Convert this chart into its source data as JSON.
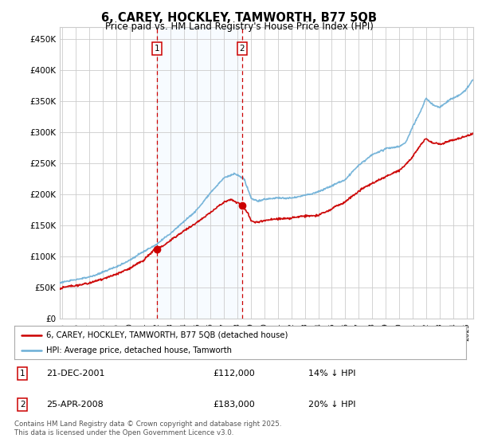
{
  "title": "6, CAREY, HOCKLEY, TAMWORTH, B77 5QB",
  "subtitle": "Price paid vs. HM Land Registry's House Price Index (HPI)",
  "ylabel_ticks": [
    "£0",
    "£50K",
    "£100K",
    "£150K",
    "£200K",
    "£250K",
    "£300K",
    "£350K",
    "£400K",
    "£450K"
  ],
  "ytick_values": [
    0,
    50000,
    100000,
    150000,
    200000,
    250000,
    300000,
    350000,
    400000,
    450000
  ],
  "ylim": [
    0,
    470000
  ],
  "xlim_start": 1994.8,
  "xlim_end": 2025.5,
  "xticks": [
    1995,
    1996,
    1997,
    1998,
    1999,
    2000,
    2001,
    2002,
    2003,
    2004,
    2005,
    2006,
    2007,
    2008,
    2009,
    2010,
    2011,
    2012,
    2013,
    2014,
    2015,
    2016,
    2017,
    2018,
    2019,
    2020,
    2021,
    2022,
    2023,
    2024,
    2025
  ],
  "hpi_color": "#6baed6",
  "price_color": "#cc0000",
  "shade_color": "#ddeeff",
  "vline_color": "#cc0000",
  "purchase1_x": 2002.0,
  "purchase1_y": 112000,
  "purchase2_x": 2008.33,
  "purchase2_y": 183000,
  "legend_line1": "6, CAREY, HOCKLEY, TAMWORTH, B77 5QB (detached house)",
  "legend_line2": "HPI: Average price, detached house, Tamworth",
  "note1_label": "1",
  "note1_date": "21-DEC-2001",
  "note1_price": "£112,000",
  "note1_hpi": "14% ↓ HPI",
  "note2_label": "2",
  "note2_date": "25-APR-2008",
  "note2_price": "£183,000",
  "note2_hpi": "20% ↓ HPI",
  "footer": "Contains HM Land Registry data © Crown copyright and database right 2025.\nThis data is licensed under the Open Government Licence v3.0.",
  "background_color": "#ffffff",
  "grid_color": "#cccccc"
}
